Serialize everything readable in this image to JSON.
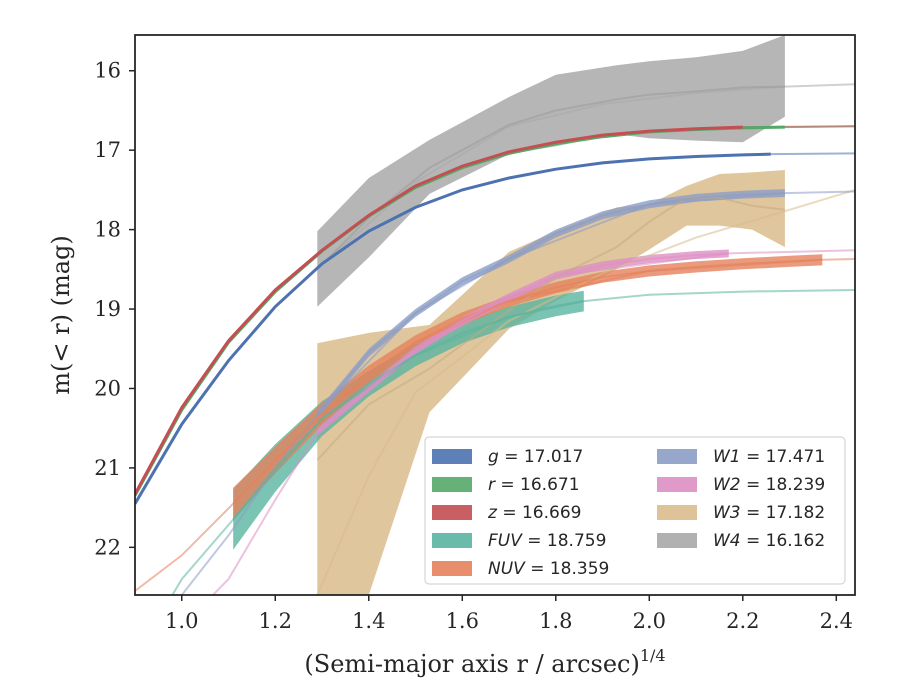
{
  "chart_data": {
    "type": "line",
    "xlabel": "(Semi-major axis r / arcsec)",
    "xlabel_superscript": "1/4",
    "ylabel": "m(< r) (mag)",
    "xlim": [
      0.9,
      2.44
    ],
    "ylim": [
      22.6,
      15.55
    ],
    "y_inverted": true,
    "grid": false,
    "legend_position": "lower-right",
    "x_ticks": [
      "1.0",
      "1.2",
      "1.4",
      "1.6",
      "1.8",
      "2.0",
      "2.2",
      "2.4"
    ],
    "y_ticks": [
      "16",
      "17",
      "18",
      "19",
      "20",
      "21",
      "22"
    ],
    "series": [
      {
        "name": "g",
        "label_value": "= 17.017",
        "color": "#4c72b0",
        "x": [
          0.9,
          1.0,
          1.1,
          1.2,
          1.3,
          1.4,
          1.5,
          1.6,
          1.7,
          1.8,
          1.9,
          2.0,
          2.1,
          2.2,
          2.26
        ],
        "y": [
          21.45,
          20.45,
          19.65,
          18.97,
          18.43,
          18.02,
          17.72,
          17.5,
          17.35,
          17.24,
          17.16,
          17.11,
          17.08,
          17.06,
          17.05
        ],
        "band_half_width": [
          0,
          0,
          0,
          0,
          0,
          0,
          0,
          0,
          0,
          0,
          0,
          0,
          0,
          0,
          0
        ],
        "model_x": [
          2.26,
          2.44
        ],
        "model_y": [
          17.05,
          17.04
        ]
      },
      {
        "name": "r",
        "label_value": "= 16.671",
        "color": "#55a868",
        "x": [
          0.9,
          1.0,
          1.1,
          1.2,
          1.3,
          1.4,
          1.5,
          1.6,
          1.7,
          1.8,
          1.9,
          2.0,
          2.1,
          2.2,
          2.29
        ],
        "y": [
          21.35,
          20.27,
          19.42,
          18.78,
          18.27,
          17.83,
          17.47,
          17.22,
          17.04,
          16.92,
          16.83,
          16.77,
          16.74,
          16.72,
          16.71
        ],
        "band_half_width": [
          0,
          0,
          0,
          0,
          0,
          0,
          0,
          0,
          0,
          0,
          0,
          0,
          0,
          0,
          0
        ],
        "model_x": [
          2.29,
          2.44
        ],
        "model_y": [
          16.71,
          16.7
        ]
      },
      {
        "name": "z",
        "label_value": "= 16.669",
        "color": "#c44e52",
        "x": [
          0.9,
          1.0,
          1.1,
          1.2,
          1.3,
          1.4,
          1.5,
          1.6,
          1.7,
          1.8,
          1.9,
          2.0,
          2.1,
          2.2
        ],
        "y": [
          21.33,
          20.24,
          19.4,
          18.76,
          18.26,
          17.82,
          17.45,
          17.2,
          17.02,
          16.9,
          16.81,
          16.76,
          16.73,
          16.71
        ],
        "band_half_width": [
          0,
          0,
          0,
          0,
          0,
          0,
          0,
          0,
          0,
          0,
          0,
          0,
          0,
          0
        ],
        "model_x": [
          2.2,
          2.44
        ],
        "model_y": [
          16.71,
          16.7
        ]
      },
      {
        "name": "FUV",
        "label_value": "= 18.759",
        "color": "#5ab4a0",
        "x": [
          1.11,
          1.2,
          1.3,
          1.4,
          1.5,
          1.6,
          1.7,
          1.8,
          1.86
        ],
        "y": [
          21.65,
          21.0,
          20.38,
          19.94,
          19.58,
          19.3,
          19.1,
          18.96,
          18.9
        ],
        "band_half_width": [
          0.38,
          0.3,
          0.22,
          0.16,
          0.14,
          0.13,
          0.13,
          0.13,
          0.13
        ],
        "model_x": [
          0.9,
          1.0,
          1.11,
          1.3,
          1.5,
          1.7,
          1.86,
          2.0,
          2.2,
          2.44
        ],
        "model_y": [
          23.4,
          22.4,
          21.65,
          20.38,
          19.58,
          19.1,
          18.9,
          18.82,
          18.78,
          18.76
        ]
      },
      {
        "name": "NUV",
        "label_value": "= 18.359",
        "color": "#e5825c",
        "x": [
          1.11,
          1.2,
          1.3,
          1.4,
          1.5,
          1.6,
          1.7,
          1.8,
          1.9,
          2.0,
          2.1,
          2.2,
          2.3,
          2.37
        ],
        "y": [
          21.45,
          20.9,
          20.32,
          19.82,
          19.42,
          19.12,
          18.9,
          18.73,
          18.6,
          18.52,
          18.47,
          18.43,
          18.4,
          18.38
        ],
        "band_half_width": [
          0.2,
          0.17,
          0.14,
          0.11,
          0.09,
          0.08,
          0.07,
          0.07,
          0.07,
          0.07,
          0.07,
          0.07,
          0.07,
          0.07
        ],
        "model_x": [
          0.9,
          1.0,
          1.11,
          1.3,
          1.5,
          1.7,
          2.0,
          2.37,
          2.44
        ],
        "model_y": [
          22.55,
          22.1,
          21.45,
          20.32,
          19.42,
          18.9,
          18.52,
          18.38,
          18.37
        ]
      },
      {
        "name": "W1",
        "label_value": "= 17.471",
        "color": "#8c9dc6",
        "x": [
          1.29,
          1.4,
          1.5,
          1.6,
          1.7,
          1.8,
          1.9,
          2.0,
          2.1,
          2.2,
          2.29
        ],
        "y": [
          20.33,
          19.55,
          19.05,
          18.65,
          18.37,
          18.05,
          17.82,
          17.68,
          17.6,
          17.56,
          17.54
        ],
        "band_half_width": [
          0.05,
          0.05,
          0.05,
          0.05,
          0.05,
          0.05,
          0.05,
          0.05,
          0.05,
          0.05,
          0.05
        ],
        "model_x": [
          0.9,
          1.0,
          1.1,
          1.2,
          1.29,
          1.5,
          1.7,
          2.0,
          2.29,
          2.44
        ],
        "model_y": [
          23.5,
          22.6,
          21.85,
          21.0,
          20.33,
          19.05,
          18.37,
          17.68,
          17.54,
          17.52
        ]
      },
      {
        "name": "W2",
        "label_value": "= 18.239",
        "color": "#dd8fc4",
        "x": [
          1.29,
          1.4,
          1.5,
          1.6,
          1.7,
          1.8,
          1.9,
          2.0,
          2.1,
          2.17
        ],
        "y": [
          20.55,
          20.0,
          19.52,
          19.15,
          18.85,
          18.58,
          18.45,
          18.37,
          18.32,
          18.3
        ],
        "band_half_width": [
          0.05,
          0.05,
          0.05,
          0.05,
          0.05,
          0.05,
          0.05,
          0.05,
          0.05,
          0.05
        ],
        "model_x": [
          0.9,
          1.0,
          1.1,
          1.2,
          1.29,
          1.5,
          1.8,
          2.17,
          2.44
        ],
        "model_y": [
          23.5,
          23.0,
          22.4,
          21.4,
          20.55,
          19.52,
          18.58,
          18.3,
          18.26
        ]
      },
      {
        "name": "W3",
        "label_value": "= 17.182",
        "color": "#d9bc8c",
        "x": [
          1.29,
          1.4,
          1.53,
          1.7,
          1.8,
          1.93,
          2.0,
          2.08,
          2.15,
          2.22,
          2.29
        ],
        "y": [
          20.9,
          20.2,
          19.75,
          19.02,
          18.6,
          18.22,
          17.9,
          17.6,
          17.6,
          17.7,
          17.75
        ],
        "band_lower": [
          19.43,
          19.3,
          19.2,
          18.28,
          18.02,
          17.72,
          17.68,
          17.45,
          17.3,
          17.28,
          17.25
        ],
        "band_upper": [
          22.6,
          22.6,
          20.3,
          19.25,
          18.9,
          18.5,
          18.25,
          17.95,
          17.95,
          18.0,
          18.22
        ],
        "model_x": [
          1.29,
          1.4,
          1.5,
          1.7,
          1.9,
          2.1,
          2.3,
          2.44
        ],
        "model_y": [
          22.6,
          21.1,
          20.05,
          19.15,
          18.55,
          18.1,
          17.75,
          17.5
        ]
      },
      {
        "name": "W4",
        "label_value": "= 16.162",
        "color": "#a9a9a9",
        "x": [
          1.29,
          1.4,
          1.53,
          1.7,
          1.8,
          1.93,
          2.0,
          2.1,
          2.2,
          2.29
        ],
        "y": [
          18.5,
          17.85,
          17.22,
          16.68,
          16.5,
          16.36,
          16.3,
          16.26,
          16.21,
          16.2
        ],
        "band_lower": [
          18.02,
          17.35,
          16.87,
          16.33,
          16.05,
          15.93,
          15.88,
          15.83,
          15.75,
          15.55
        ],
        "band_upper": [
          18.97,
          18.35,
          17.55,
          17.05,
          16.95,
          16.8,
          16.85,
          16.88,
          16.9,
          16.58
        ],
        "model_x": [
          1.29,
          1.5,
          1.7,
          1.9,
          2.1,
          2.29,
          2.44
        ],
        "model_y": [
          18.5,
          17.4,
          16.7,
          16.42,
          16.28,
          16.2,
          16.17
        ]
      }
    ]
  }
}
